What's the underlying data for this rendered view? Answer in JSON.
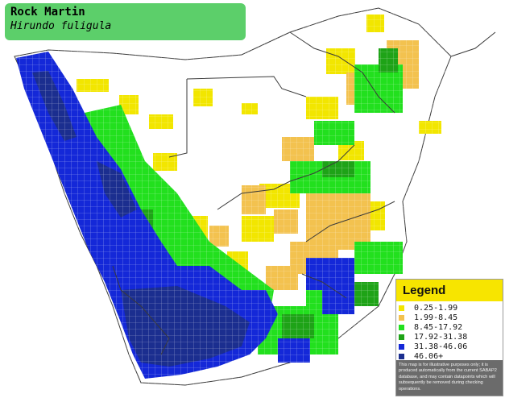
{
  "title": {
    "common_name": "Rock Martin",
    "scientific_name": "Hirundo fuligula"
  },
  "colors": {
    "level_1": "#f2e600",
    "level_2": "#f3c24f",
    "level_3": "#22e01e",
    "level_4": "#1ea317",
    "level_5": "#1428d8",
    "level_6": "#1b2e8f",
    "title_bg": "#5ccf6a",
    "legend_header_bg": "#f7e500",
    "disclaimer_bg": "#6b6b6b",
    "border_lines": "#3a3a3a"
  },
  "legend": {
    "heading": "Legend",
    "items": [
      {
        "range": "0.25-1.99",
        "color": "#f2e600"
      },
      {
        "range": "1.99-8.45",
        "color": "#f3c24f"
      },
      {
        "range": "8.45-17.92",
        "color": "#22e01e"
      },
      {
        "range": "17.92-31.38",
        "color": "#1ea317"
      },
      {
        "range": "31.38-46.06",
        "color": "#1428d8"
      },
      {
        "range": "46.06+",
        "color": "#1b2e8f"
      }
    ],
    "disclaimer": "This map is for illustrative purposes only; it is produced automatically from the current SABAP2 database, and may contain datapoints which will subsequently be removed during checking operations."
  }
}
